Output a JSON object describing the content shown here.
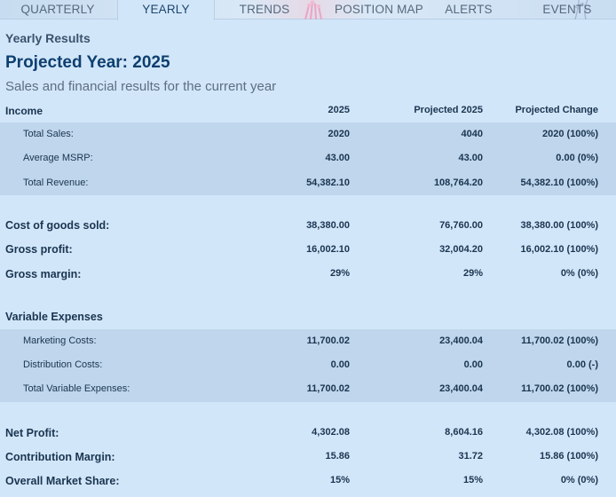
{
  "tabs": [
    {
      "label": "QUARTERLY",
      "active": false
    },
    {
      "label": "YEARLY",
      "active": true
    },
    {
      "label": "TRENDS",
      "active": false
    },
    {
      "label": "POSITION MAP",
      "active": false
    },
    {
      "label": "ALERTS",
      "active": false
    },
    {
      "label": "EVENTS",
      "active": false
    }
  ],
  "header": {
    "subtitle": "Yearly Results",
    "title": "Projected Year: 2025",
    "description": "Sales and financial results for the current year"
  },
  "columns": {
    "label": "Income",
    "col1": "2025",
    "col2": "Projected 2025",
    "col3": "Projected Change"
  },
  "income": [
    {
      "label": "Total Sales:",
      "v1": "2020",
      "v2": "4040",
      "v3": "2020 (100%)"
    },
    {
      "label": "Average MSRP:",
      "v1": "43.00",
      "v2": "43.00",
      "v3": "0.00 (0%)"
    },
    {
      "label": "Total Revenue:",
      "v1": "54,382.10",
      "v2": "108,764.20",
      "v3": "54,382.10 (100%)"
    }
  ],
  "summary1": [
    {
      "label": "Cost of goods sold:",
      "v1": "38,380.00",
      "v2": "76,760.00",
      "v3": "38,380.00 (100%)"
    },
    {
      "label": "Gross profit:",
      "v1": "16,002.10",
      "v2": "32,004.20",
      "v3": "16,002.10 (100%)"
    },
    {
      "label": "Gross margin:",
      "v1": "29%",
      "v2": "29%",
      "v3": "0% (0%)"
    }
  ],
  "variable_expenses": {
    "heading": "Variable Expenses",
    "rows": [
      {
        "label": "Marketing Costs:",
        "v1": "11,700.02",
        "v2": "23,400.04",
        "v3": "11,700.02 (100%)"
      },
      {
        "label": "Distribution Costs:",
        "v1": "0.00",
        "v2": "0.00",
        "v3": "0.00 (-)"
      },
      {
        "label": "Total Variable Expenses:",
        "v1": "11,700.02",
        "v2": "23,400.04",
        "v3": "11,700.02 (100%)"
      }
    ]
  },
  "summary2": [
    {
      "label": "Net Profit:",
      "v1": "4,302.08",
      "v2": "8,604.16",
      "v3": "4,302.08 (100%)"
    },
    {
      "label": "Contribution Margin:",
      "v1": "15.86",
      "v2": "31.72",
      "v3": "15.86 (100%)"
    },
    {
      "label": "Overall Market Share:",
      "v1": "15%",
      "v2": "15%",
      "v3": "0% (0%)"
    }
  ]
}
